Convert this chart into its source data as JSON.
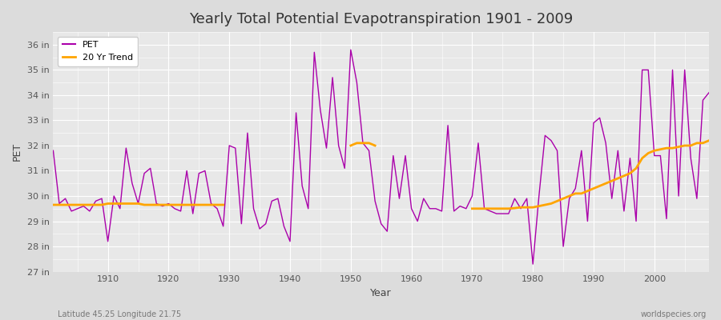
{
  "title": "Yearly Total Potential Evapotranspiration 1901 - 2009",
  "xlabel": "Year",
  "ylabel": "PET",
  "footnote_left": "Latitude 45.25 Longitude 21.75",
  "footnote_right": "worldspecies.org",
  "pet_color": "#AA00AA",
  "trend_color": "#FFA500",
  "bg_color": "#DCDCDC",
  "plot_bg_color": "#E8E8E8",
  "ylim": [
    27,
    36.5
  ],
  "yticks": [
    27,
    28,
    29,
    30,
    31,
    32,
    33,
    34,
    35,
    36
  ],
  "ytick_labels": [
    "27 in",
    "28 in",
    "29 in",
    "30 in",
    "31 in",
    "32 in",
    "33 in",
    "34 in",
    "35 in",
    "36 in"
  ],
  "years": [
    1901,
    1902,
    1903,
    1904,
    1905,
    1906,
    1907,
    1908,
    1909,
    1910,
    1911,
    1912,
    1913,
    1914,
    1915,
    1916,
    1917,
    1918,
    1919,
    1920,
    1921,
    1922,
    1923,
    1924,
    1925,
    1926,
    1927,
    1928,
    1929,
    1930,
    1931,
    1932,
    1933,
    1934,
    1935,
    1936,
    1937,
    1938,
    1939,
    1940,
    1941,
    1942,
    1943,
    1944,
    1945,
    1946,
    1947,
    1948,
    1949,
    1950,
    1951,
    1952,
    1953,
    1954,
    1955,
    1956,
    1957,
    1958,
    1959,
    1960,
    1961,
    1962,
    1963,
    1964,
    1965,
    1966,
    1967,
    1968,
    1969,
    1970,
    1971,
    1972,
    1973,
    1974,
    1975,
    1976,
    1977,
    1978,
    1979,
    1980,
    1981,
    1982,
    1983,
    1984,
    1985,
    1986,
    1987,
    1988,
    1989,
    1990,
    1991,
    1992,
    1993,
    1994,
    1995,
    1996,
    1997,
    1998,
    1999,
    2000,
    2001,
    2002,
    2003,
    2004,
    2005,
    2006,
    2007,
    2008,
    2009
  ],
  "pet_values": [
    31.8,
    29.7,
    29.9,
    29.4,
    29.5,
    29.6,
    29.4,
    29.8,
    29.9,
    28.2,
    30.0,
    29.5,
    31.9,
    30.5,
    29.7,
    30.9,
    31.1,
    29.7,
    29.6,
    29.7,
    29.5,
    29.4,
    31.0,
    29.3,
    30.9,
    31.0,
    29.7,
    29.5,
    28.8,
    32.0,
    31.9,
    28.9,
    32.5,
    29.5,
    28.7,
    28.9,
    29.8,
    29.9,
    28.8,
    28.2,
    33.3,
    30.4,
    29.5,
    35.7,
    33.4,
    31.9,
    34.7,
    32.0,
    31.1,
    35.8,
    34.5,
    32.1,
    31.8,
    29.8,
    28.9,
    28.6,
    31.6,
    29.9,
    31.6,
    29.5,
    29.0,
    29.9,
    29.5,
    29.5,
    29.4,
    32.8,
    29.4,
    29.6,
    29.5,
    30.0,
    32.1,
    29.5,
    29.4,
    29.3,
    29.3,
    29.3,
    29.9,
    29.5,
    29.9,
    27.3,
    30.0,
    32.4,
    32.2,
    31.8,
    28.0,
    29.9,
    30.3,
    31.8,
    29.0,
    32.9,
    33.1,
    32.1,
    29.9,
    31.8,
    29.4,
    31.5,
    29.0,
    35.0,
    35.0,
    31.6,
    31.6,
    29.1,
    35.0,
    30.0,
    35.0,
    31.5,
    29.9,
    33.8,
    34.1
  ],
  "trend_seg1_years": [
    1901,
    1902,
    1903,
    1904,
    1905,
    1906,
    1907,
    1908,
    1909,
    1910,
    1911,
    1912,
    1913,
    1914,
    1915,
    1916,
    1917,
    1918,
    1919,
    1920,
    1921,
    1922,
    1923,
    1924,
    1925,
    1926,
    1927,
    1928,
    1929
  ],
  "trend_seg1_values": [
    29.65,
    29.65,
    29.65,
    29.65,
    29.65,
    29.65,
    29.65,
    29.65,
    29.65,
    29.7,
    29.7,
    29.7,
    29.7,
    29.7,
    29.7,
    29.65,
    29.65,
    29.65,
    29.65,
    29.65,
    29.65,
    29.65,
    29.65,
    29.65,
    29.65,
    29.65,
    29.65,
    29.65,
    29.65
  ],
  "trend_seg2_years": [
    1950,
    1951,
    1952,
    1953,
    1954
  ],
  "trend_seg2_values": [
    32.0,
    32.1,
    32.1,
    32.1,
    32.0
  ],
  "trend_seg3_years": [
    1970,
    1971,
    1972,
    1973,
    1974,
    1975,
    1976,
    1977,
    1978,
    1979,
    1980,
    1981,
    1982,
    1983,
    1984,
    1985,
    1986,
    1987,
    1988,
    1989,
    1990,
    1991,
    1992,
    1993,
    1994,
    1995,
    1996,
    1997,
    1998,
    1999,
    2000,
    2001,
    2002,
    2003,
    2004,
    2005,
    2006,
    2007,
    2008,
    2009
  ],
  "trend_seg3_values": [
    29.5,
    29.5,
    29.5,
    29.5,
    29.5,
    29.5,
    29.5,
    29.52,
    29.55,
    29.55,
    29.55,
    29.6,
    29.65,
    29.7,
    29.8,
    29.9,
    30.0,
    30.1,
    30.1,
    30.2,
    30.3,
    30.4,
    30.5,
    30.6,
    30.7,
    30.8,
    30.9,
    31.1,
    31.5,
    31.7,
    31.8,
    31.85,
    31.9,
    31.9,
    31.95,
    32.0,
    32.0,
    32.1,
    32.1,
    32.2
  ]
}
